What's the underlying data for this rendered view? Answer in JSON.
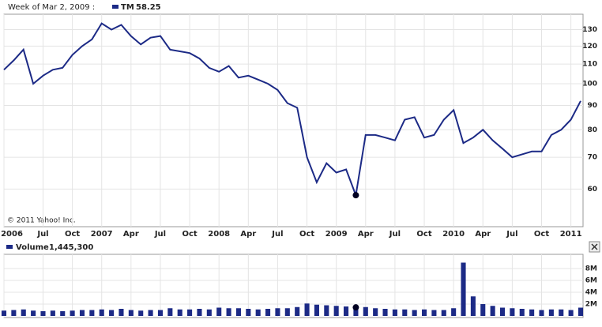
{
  "chart_data": [
    {
      "type": "line",
      "cursor_label": "Week of Mar 2, 2009 :",
      "copyright": "© 2011 Yahoo! Inc.",
      "x": [
        "2006-03",
        "2006-04",
        "2006-05",
        "2006-06",
        "2006-07",
        "2006-08",
        "2006-09",
        "2006-10",
        "2006-11",
        "2006-12",
        "2007-01",
        "2007-02",
        "2007-03",
        "2007-04",
        "2007-05",
        "2007-06",
        "2007-07",
        "2007-08",
        "2007-09",
        "2007-10",
        "2007-11",
        "2007-12",
        "2008-01",
        "2008-02",
        "2008-03",
        "2008-04",
        "2008-05",
        "2008-06",
        "2008-07",
        "2008-08",
        "2008-09",
        "2008-10",
        "2008-11",
        "2008-12",
        "2009-01",
        "2009-02",
        "2009-03",
        "2009-04",
        "2009-05",
        "2009-06",
        "2009-07",
        "2009-08",
        "2009-09",
        "2009-10",
        "2009-11",
        "2009-12",
        "2010-01",
        "2010-02",
        "2010-03",
        "2010-04",
        "2010-05",
        "2010-06",
        "2010-07",
        "2010-08",
        "2010-09",
        "2010-10",
        "2010-11",
        "2010-12",
        "2011-01",
        "2011-02"
      ],
      "series": [
        {
          "name": "TM",
          "color": "#1c2a86",
          "values": [
            107,
            112,
            118,
            100,
            104,
            107,
            108,
            115,
            120,
            124,
            134,
            130,
            133,
            126,
            121,
            125,
            126,
            118,
            117,
            116,
            113,
            108,
            106,
            109,
            103,
            104,
            102,
            100,
            97,
            91,
            89,
            70,
            62,
            68,
            65,
            66,
            58.25,
            78,
            78,
            77,
            76,
            84,
            85,
            77,
            78,
            84,
            88,
            75,
            77,
            80,
            76,
            73,
            70,
            71,
            72,
            72,
            78,
            80,
            84,
            92
          ]
        }
      ],
      "cursor": {
        "x": "2009-03",
        "value": 58.25
      },
      "xlim": [
        "2006-03",
        "2011-02"
      ],
      "xticks": [
        {
          "value": "2006-01",
          "label": "2006"
        },
        {
          "value": "2006-07",
          "label": "Jul"
        },
        {
          "value": "2006-10",
          "label": "Oct"
        },
        {
          "value": "2007-01",
          "label": "2007"
        },
        {
          "value": "2007-04",
          "label": "Apr"
        },
        {
          "value": "2007-07",
          "label": "Jul"
        },
        {
          "value": "2007-10",
          "label": "Oct"
        },
        {
          "value": "2008-01",
          "label": "2008"
        },
        {
          "value": "2008-04",
          "label": "Apr"
        },
        {
          "value": "2008-07",
          "label": "Jul"
        },
        {
          "value": "2008-10",
          "label": "Oct"
        },
        {
          "value": "2009-01",
          "label": "2009"
        },
        {
          "value": "2009-04",
          "label": "Apr"
        },
        {
          "value": "2009-07",
          "label": "Jul"
        },
        {
          "value": "2009-10",
          "label": "Oct"
        },
        {
          "value": "2010-01",
          "label": "2010"
        },
        {
          "value": "2010-04",
          "label": "Apr"
        },
        {
          "value": "2010-07",
          "label": "Jul"
        },
        {
          "value": "2010-10",
          "label": "Oct"
        },
        {
          "value": "2011-01",
          "label": "2011"
        }
      ],
      "ylim": [
        50,
        139
      ],
      "yticks": [
        60,
        70,
        80,
        90,
        100,
        110,
        120,
        130
      ],
      "log_scale": true,
      "grid": true
    },
    {
      "type": "bar",
      "x": [
        "2006-03",
        "2006-04",
        "2006-05",
        "2006-06",
        "2006-07",
        "2006-08",
        "2006-09",
        "2006-10",
        "2006-11",
        "2006-12",
        "2007-01",
        "2007-02",
        "2007-03",
        "2007-04",
        "2007-05",
        "2007-06",
        "2007-07",
        "2007-08",
        "2007-09",
        "2007-10",
        "2007-11",
        "2007-12",
        "2008-01",
        "2008-02",
        "2008-03",
        "2008-04",
        "2008-05",
        "2008-06",
        "2008-07",
        "2008-08",
        "2008-09",
        "2008-10",
        "2008-11",
        "2008-12",
        "2009-01",
        "2009-02",
        "2009-03",
        "2009-04",
        "2009-05",
        "2009-06",
        "2009-07",
        "2009-08",
        "2009-09",
        "2009-10",
        "2009-11",
        "2009-12",
        "2010-01",
        "2010-02",
        "2010-03",
        "2010-04",
        "2010-05",
        "2010-06",
        "2010-07",
        "2010-08",
        "2010-09",
        "2010-10",
        "2010-11",
        "2010-12",
        "2011-01",
        "2011-02"
      ],
      "series": [
        {
          "name": "Volume",
          "color": "#1c2a86",
          "values": [
            900000,
            1000000,
            1100000,
            900000,
            800000,
            900000,
            800000,
            900000,
            1000000,
            1000000,
            1100000,
            1000000,
            1200000,
            1000000,
            900000,
            1000000,
            1000000,
            1300000,
            1100000,
            1100000,
            1200000,
            1100000,
            1400000,
            1300000,
            1300000,
            1200000,
            1100000,
            1200000,
            1300000,
            1300000,
            1500000,
            2100000,
            1900000,
            1800000,
            1700000,
            1600000,
            1445300,
            1500000,
            1300000,
            1200000,
            1100000,
            1100000,
            1000000,
            1100000,
            1000000,
            1000000,
            1300000,
            9000000,
            3300000,
            2000000,
            1700000,
            1400000,
            1300000,
            1200000,
            1100000,
            1000000,
            1100000,
            1100000,
            1000000,
            1400000
          ]
        }
      ],
      "cursor": {
        "x": "2009-03",
        "value": 1445300,
        "value_label": "1,445,300"
      },
      "xlim": [
        "2006-03",
        "2011-02"
      ],
      "ylim": [
        0,
        10400000
      ],
      "yticks": [
        {
          "value": 2000000,
          "label": "2M"
        },
        {
          "value": 4000000,
          "label": "4M"
        },
        {
          "value": 6000000,
          "label": "6M"
        },
        {
          "value": 8000000,
          "label": "8M"
        }
      ],
      "grid": true
    }
  ]
}
